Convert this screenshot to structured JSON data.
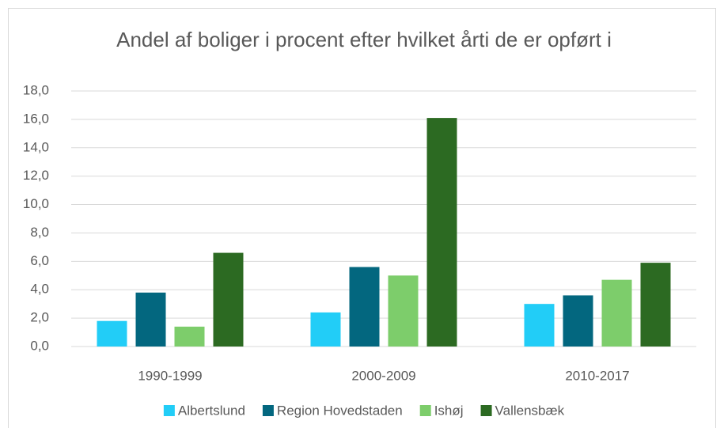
{
  "chart_data": {
    "type": "bar",
    "title": "Andel af boliger i procent efter hvilket årti de er opført i",
    "categories": [
      "1990-1999",
      "2000-2009",
      "2010-2017"
    ],
    "series": [
      {
        "name": "Albertslund",
        "color": "#22cdf7",
        "values": [
          1.8,
          2.4,
          3.0
        ]
      },
      {
        "name": "Region Hovedstaden",
        "color": "#03677f",
        "values": [
          3.8,
          5.6,
          3.6
        ]
      },
      {
        "name": "Ishøj",
        "color": "#7dcd6b",
        "values": [
          1.4,
          5.0,
          4.7
        ]
      },
      {
        "name": "Vallensbæk",
        "color": "#2c6a22",
        "values": [
          6.6,
          16.1,
          5.9
        ]
      }
    ],
    "ylim": [
      0,
      18
    ],
    "yticks": [
      {
        "value": 0,
        "label": "0,0"
      },
      {
        "value": 2,
        "label": "2,0"
      },
      {
        "value": 4,
        "label": "4,0"
      },
      {
        "value": 6,
        "label": "6,0"
      },
      {
        "value": 8,
        "label": "8,0"
      },
      {
        "value": 10,
        "label": "10,0"
      },
      {
        "value": 12,
        "label": "12,0"
      },
      {
        "value": 14,
        "label": "14,0"
      },
      {
        "value": 16,
        "label": "16,0"
      },
      {
        "value": 18,
        "label": "18,0"
      }
    ],
    "grid": true,
    "legend": "bottom"
  }
}
